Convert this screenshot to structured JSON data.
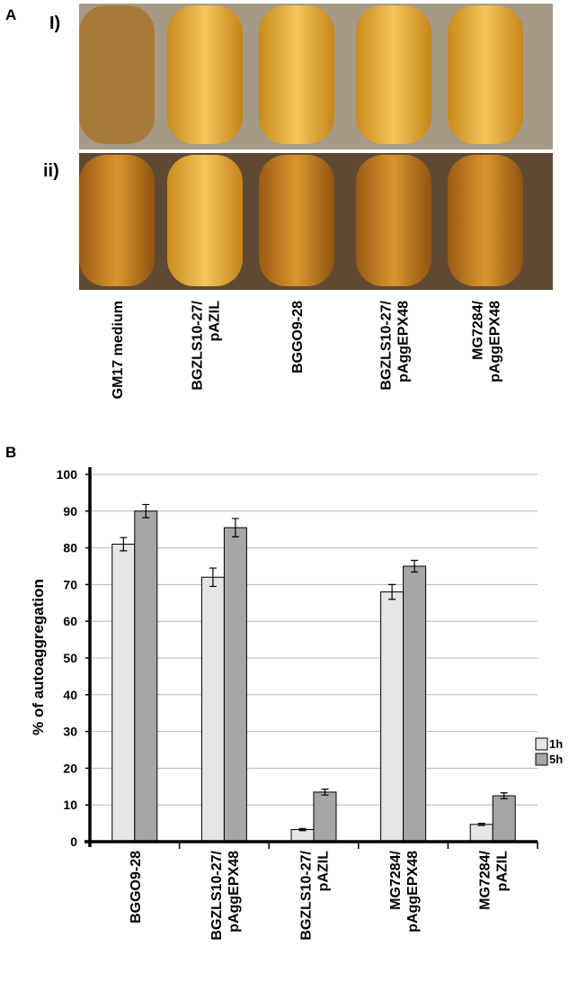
{
  "panel_labels": {
    "a": "A",
    "b": "B"
  },
  "photo": {
    "rows": [
      "I)",
      "ii)"
    ],
    "tubes": [
      [
        "GM17 medium"
      ],
      [
        "BGZLS10-27/",
        "pAZIL"
      ],
      [
        "BGGO9-28"
      ],
      [
        "BGZLS10-27/",
        "pAggEPX48"
      ],
      [
        "MG7284/",
        "pAggEPX48"
      ]
    ]
  },
  "chart_data": {
    "type": "bar",
    "ylabel": "% of autoaggregation",
    "categories": [
      [
        "BGGO9-28"
      ],
      [
        "BGZLS10-27/",
        "pAggEPX48"
      ],
      [
        "BGZLS10-27/",
        "pAZIL"
      ],
      [
        "MG7284/",
        "pAggEPX48"
      ],
      [
        "MG7284/",
        "pAZIL"
      ]
    ],
    "series": [
      {
        "name": "1h",
        "color": "#e6e6e6",
        "values": [
          81,
          72,
          3.3,
          68,
          4.7
        ],
        "errors": [
          1.8,
          2.5,
          0.3,
          2,
          0.3
        ]
      },
      {
        "name": "5h",
        "color": "#a6a6a6",
        "values": [
          90,
          85.5,
          13.5,
          75,
          12.5
        ],
        "errors": [
          1.8,
          2.5,
          0.8,
          1.6,
          0.8
        ]
      }
    ],
    "ylim": [
      0,
      100
    ],
    "yticks": [
      0,
      10,
      20,
      30,
      40,
      50,
      60,
      70,
      80,
      90,
      100
    ],
    "grid": true,
    "legend": "right"
  }
}
